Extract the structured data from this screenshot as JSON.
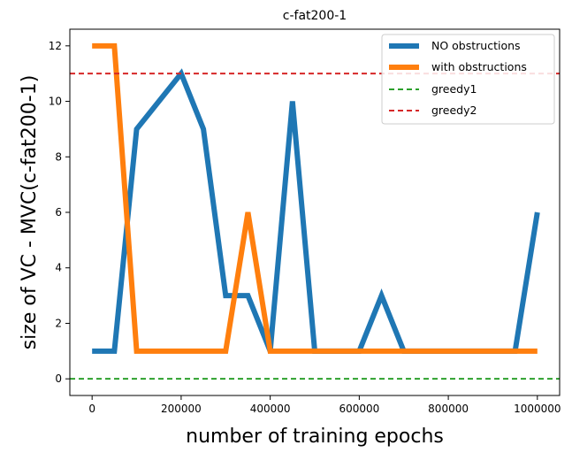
{
  "chart_data": {
    "type": "line",
    "title": "c-fat200-1",
    "xlabel": "number of training epochs",
    "ylabel": "size of VC - MVC(c-fat200-1)",
    "xlim": [
      -50000,
      1050000
    ],
    "ylim": [
      -0.6,
      12.6
    ],
    "xticks": [
      0,
      200000,
      400000,
      600000,
      800000,
      1000000
    ],
    "xtick_labels": [
      "0",
      "200000",
      "400000",
      "600000",
      "800000",
      "1000000"
    ],
    "yticks": [
      0,
      2,
      4,
      6,
      8,
      10,
      12
    ],
    "ytick_labels": [
      "0",
      "2",
      "4",
      "6",
      "8",
      "10",
      "12"
    ],
    "grid": false,
    "legend_position": "top-right",
    "series": [
      {
        "name": "NO obstructions",
        "color": "#1f77b4",
        "style": "solid",
        "x": [
          0,
          50000,
          100000,
          150000,
          200000,
          250000,
          300000,
          350000,
          400000,
          450000,
          500000,
          550000,
          600000,
          650000,
          700000,
          750000,
          800000,
          850000,
          900000,
          950000,
          1000000
        ],
        "values": [
          1,
          1,
          9,
          10,
          11,
          9,
          3,
          3,
          1,
          10,
          1,
          1,
          1,
          3,
          1,
          1,
          1,
          1,
          1,
          1,
          6
        ]
      },
      {
        "name": "with obstructions",
        "color": "#ff7f0e",
        "style": "solid",
        "x": [
          0,
          50000,
          100000,
          150000,
          200000,
          250000,
          300000,
          350000,
          400000,
          450000,
          500000,
          550000,
          600000,
          650000,
          700000,
          750000,
          800000,
          850000,
          900000,
          950000,
          1000000
        ],
        "values": [
          12,
          12,
          1,
          1,
          1,
          1,
          1,
          6,
          1,
          1,
          1,
          1,
          1,
          1,
          1,
          1,
          1,
          1,
          1,
          1,
          1
        ]
      },
      {
        "name": "greedy1",
        "color": "#2ca02c",
        "style": "dashed",
        "constant": 0
      },
      {
        "name": "greedy2",
        "color": "#d62728",
        "style": "dashed",
        "constant": 11
      }
    ]
  }
}
